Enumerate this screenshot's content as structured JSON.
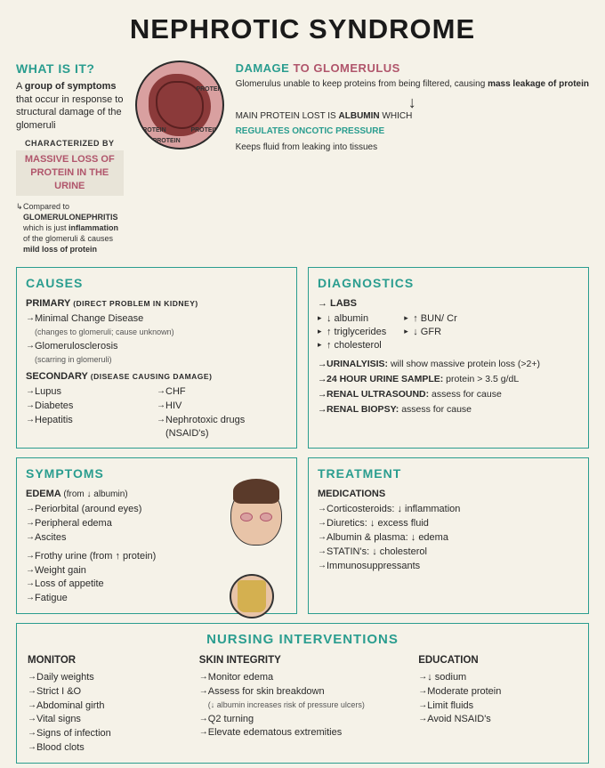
{
  "title": "NEPHROTIC SYNDROME",
  "colors": {
    "teal": "#2a9d8f",
    "mauve": "#b0556b",
    "bg": "#f5f2e8",
    "text": "#2a2a2a"
  },
  "what_is": {
    "heading": "WHAT IS IT?",
    "desc_pre": "A ",
    "desc_bold": "group of symptoms",
    "desc_post": " that occur in response to structural damage of the glomeruli",
    "char_label": "CHARACTERIZED BY",
    "mass_loss": "MASSIVE LOSS OF PROTEIN IN THE URINE",
    "compared_pre": "Compared to ",
    "compared_bold": "GLOMERULONEPHRITIS",
    "compared_mid": " which is just ",
    "compared_bold2": "inflammation",
    "compared_post": " of the glomeruli & causes ",
    "compared_bold3": "mild loss of protein"
  },
  "damage": {
    "heading_pre": "DAMAGE",
    "heading_post": " TO GLOMERULUS",
    "desc_pre": "Glomerulus unable to keep proteins from being filtered, causing ",
    "desc_bold": "mass leakage of protein",
    "arrow": "↓",
    "main_pre": "MAIN PROTEIN LOST IS ",
    "main_bold": "ALBUMIN",
    "main_post": " WHICH",
    "reg": "REGULATES ONCOTIC PRESSURE",
    "keeps": "Keeps fluid from leaking into tissues",
    "protein_labels": [
      "PROTEIN",
      "PROTEIN",
      "PROTEIN",
      "PROTEIN"
    ]
  },
  "causes": {
    "heading": "CAUSES",
    "primary_head": "PRIMARY",
    "primary_paren": "(DIRECT PROBLEM IN KIDNEY)",
    "primary_items": [
      {
        "t": "Minimal Change Disease",
        "n": "(changes to glomeruli; cause unknown)"
      },
      {
        "t": "Glomerulosclerosis",
        "n": "(scarring in glomeruli)"
      }
    ],
    "secondary_head": "SECONDARY",
    "secondary_paren": "(DISEASE CAUSING DAMAGE)",
    "secondary_left": [
      "Lupus",
      "Diabetes",
      "Hepatitis"
    ],
    "secondary_right": [
      "CHF",
      "HIV",
      "Nephrotoxic drugs (NSAID's)"
    ]
  },
  "diagnostics": {
    "heading": "DIAGNOSTICS",
    "labs_head": "→ LABS",
    "labs_left": [
      "↓ albumin",
      "↑ triglycerides",
      "↑ cholesterol"
    ],
    "labs_right": [
      "↑ BUN/ Cr",
      "↓ GFR"
    ],
    "lines": [
      {
        "b": "URINALYISIS:",
        "t": " will show massive protein loss (>2+)"
      },
      {
        "b": "24 HOUR URINE SAMPLE:",
        "t": " protein > 3.5 g/dL"
      },
      {
        "b": "RENAL ULTRASOUND:",
        "t": " assess for cause"
      },
      {
        "b": "RENAL BIOPSY:",
        "t": " assess for cause"
      }
    ]
  },
  "symptoms": {
    "heading": "SYMPTOMS",
    "edema_head": "EDEMA",
    "edema_paren": "(from ↓ albumin)",
    "edema_items": [
      "Periorbital (around eyes)",
      "Peripheral edema",
      "Ascites"
    ],
    "other_items": [
      "Frothy urine (from ↑ protein)",
      "Weight gain",
      "Loss of appetite",
      "Fatigue"
    ]
  },
  "treatment": {
    "heading": "TREATMENT",
    "meds_head": "MEDICATIONS",
    "items": [
      "Corticosteroids: ↓ inflammation",
      "Diuretics: ↓ excess fluid",
      "Albumin & plasma: ↓ edema",
      "STATIN's: ↓ cholesterol",
      "Immunosuppressants"
    ]
  },
  "nursing": {
    "heading": "NURSING INTERVENTIONS",
    "monitor_head": "MONITOR",
    "monitor_items": [
      "Daily weights",
      "Strict I &O",
      "Abdominal girth",
      "Vital signs",
      "Signs of infection",
      "Blood clots"
    ],
    "skin_head": "SKIN INTEGRITY",
    "skin_items": [
      {
        "t": "Monitor edema",
        "n": ""
      },
      {
        "t": "Assess for skin breakdown",
        "n": "(↓ albumin increases risk of pressure ulcers)"
      },
      {
        "t": "Q2 turning",
        "n": ""
      },
      {
        "t": "Elevate edematous extremities",
        "n": ""
      }
    ],
    "edu_head": "EDUCATION",
    "edu_items": [
      "↓ sodium",
      "Moderate protein",
      "Limit fluids",
      "Avoid NSAID's"
    ]
  }
}
